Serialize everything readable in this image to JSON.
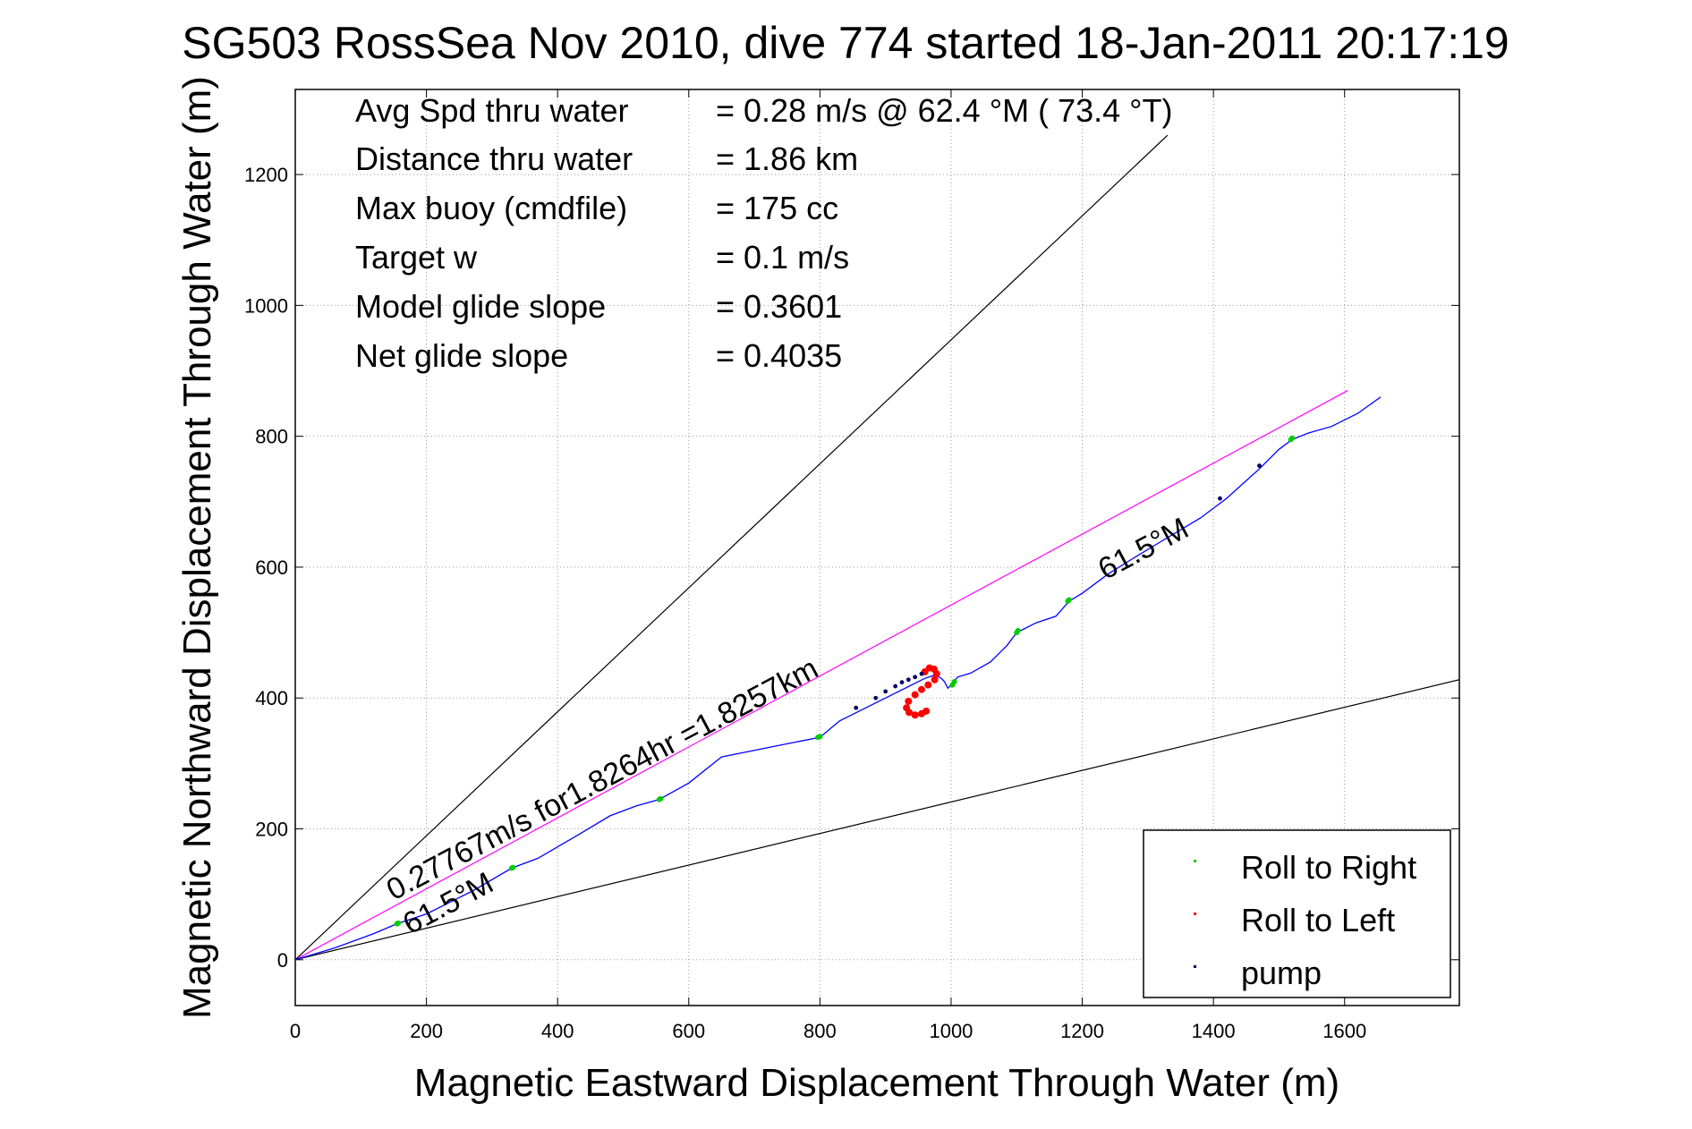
{
  "chart_data": {
    "type": "line",
    "title": "SG503 RossSea Nov 2010, dive 774 started 18-Jan-2011 20:17:19",
    "xlabel": "Magnetic Eastward Displacement Through Water (m)",
    "ylabel": "Magnetic Northward Displacement Through Water (m)",
    "xlim": [
      0,
      1775
    ],
    "ylim": [
      -70,
      1330
    ],
    "xticks": [
      0,
      200,
      400,
      600,
      800,
      1000,
      1200,
      1400,
      1600
    ],
    "yticks": [
      0,
      200,
      400,
      600,
      800,
      1000,
      1200
    ],
    "grid": true,
    "stats": [
      {
        "label": "Avg Spd thru water",
        "value": "=  0.28 m/s @  62.4 °M ( 73.4 °T)"
      },
      {
        "label": "Distance thru water",
        "value": "=  1.86 km"
      },
      {
        "label": "Max buoy (cmdfile)",
        "value": "= 175 cc"
      },
      {
        "label": "Target w",
        "value": "= 0.1 m/s"
      },
      {
        "label": "Model glide slope",
        "value": "= 0.3601"
      },
      {
        "label": "Net glide slope",
        "value": "= 0.4035"
      }
    ],
    "annotations": [
      {
        "text": "0.27767m/s for1.8264hr =1.8257km",
        "x": 150,
        "y": 90,
        "angle_deg": 27.9
      },
      {
        "text": "61.5°M",
        "x": 175,
        "y": 38,
        "angle_deg": 27.9
      },
      {
        "text": "61.5°M",
        "x": 1235,
        "y": 580,
        "angle_deg": 27.9
      }
    ],
    "reference_lines": [
      {
        "name": "course-line",
        "color": "#ff00ff",
        "points": [
          [
            0,
            0
          ],
          [
            1605,
            870
          ]
        ]
      },
      {
        "name": "envelope-steep",
        "color": "#000000",
        "points": [
          [
            0,
            0
          ],
          [
            1330,
            1260
          ]
        ]
      },
      {
        "name": "envelope-shallow",
        "color": "#000000",
        "points": [
          [
            0,
            0
          ],
          [
            1775,
            428
          ]
        ]
      }
    ],
    "series": [
      {
        "color": "#0000ff",
        "values": [
          [
            0,
            0
          ],
          [
            60,
            18
          ],
          [
            120,
            40
          ],
          [
            155,
            55
          ],
          [
            200,
            70
          ],
          [
            270,
            105
          ],
          [
            330,
            140
          ],
          [
            370,
            155
          ],
          [
            430,
            190
          ],
          [
            480,
            220
          ],
          [
            520,
            235
          ],
          [
            555,
            245
          ],
          [
            600,
            270
          ],
          [
            650,
            310
          ],
          [
            700,
            320
          ],
          [
            750,
            330
          ],
          [
            800,
            340
          ],
          [
            830,
            365
          ],
          [
            870,
            385
          ],
          [
            910,
            405
          ],
          [
            940,
            420
          ],
          [
            960,
            430
          ],
          [
            975,
            435
          ],
          [
            985,
            430
          ],
          [
            990,
            425
          ],
          [
            995,
            415
          ],
          [
            1000,
            420
          ],
          [
            1010,
            432
          ],
          [
            1030,
            438
          ],
          [
            1060,
            455
          ],
          [
            1085,
            480
          ],
          [
            1100,
            500
          ],
          [
            1130,
            515
          ],
          [
            1160,
            525
          ],
          [
            1180,
            548
          ],
          [
            1200,
            560
          ],
          [
            1240,
            590
          ],
          [
            1280,
            615
          ],
          [
            1330,
            645
          ],
          [
            1380,
            675
          ],
          [
            1420,
            705
          ],
          [
            1470,
            750
          ],
          [
            1500,
            780
          ],
          [
            1520,
            795
          ],
          [
            1545,
            805
          ],
          [
            1580,
            815
          ],
          [
            1620,
            835
          ],
          [
            1655,
            860
          ]
        ]
      },
      {
        "name": "Roll to Right",
        "color": "#00cc00",
        "values": [
          [
            155,
            55
          ],
          [
            157,
            56
          ],
          [
            330,
            140
          ],
          [
            332,
            141
          ],
          [
            555,
            245
          ],
          [
            557,
            246
          ],
          [
            797,
            340
          ],
          [
            800,
            341
          ],
          [
            1002,
            420
          ],
          [
            1005,
            425
          ],
          [
            1100,
            500
          ],
          [
            1102,
            503
          ],
          [
            1178,
            548
          ],
          [
            1180,
            550
          ],
          [
            1518,
            795
          ],
          [
            1520,
            797
          ]
        ]
      },
      {
        "name": "Roll to Left",
        "color": "#ff0000",
        "values": [
          [
            960,
            440
          ],
          [
            967,
            446
          ],
          [
            974,
            444
          ],
          [
            978,
            437
          ],
          [
            975,
            428
          ],
          [
            965,
            420
          ],
          [
            955,
            413
          ],
          [
            945,
            405
          ],
          [
            935,
            395
          ],
          [
            932,
            385
          ],
          [
            936,
            378
          ],
          [
            945,
            374
          ],
          [
            955,
            376
          ],
          [
            962,
            380
          ]
        ]
      },
      {
        "name": "pump",
        "color": "#000066",
        "values": [
          [
            855,
            385
          ],
          [
            885,
            400
          ],
          [
            900,
            410
          ],
          [
            915,
            418
          ],
          [
            925,
            424
          ],
          [
            935,
            428
          ],
          [
            945,
            432
          ],
          [
            955,
            437
          ],
          [
            1410,
            705
          ],
          [
            1470,
            755
          ]
        ]
      }
    ]
  }
}
